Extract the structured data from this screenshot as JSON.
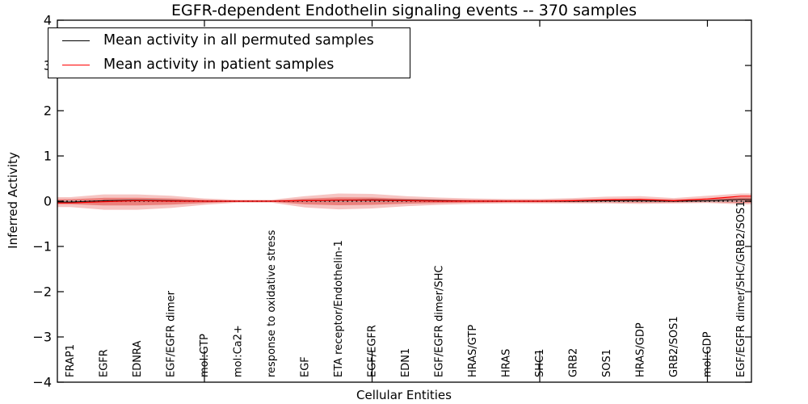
{
  "figure": {
    "title": "EGFR-dependent Endothelin signaling events -- 370 samples",
    "xlabel": "Cellular Entities",
    "ylabel": "Inferred Activity"
  },
  "legend": {
    "position": "upper left",
    "items": [
      {
        "label": "Mean activity in all permuted samples",
        "color": "#000000"
      },
      {
        "label": "Mean activity in patient samples",
        "color": "#ff0000"
      }
    ]
  },
  "chart_data": {
    "type": "line",
    "title": "EGFR-dependent Endothelin signaling events -- 370 samples",
    "xlabel": "Cellular Entities",
    "ylabel": "Inferred Activity",
    "ylim": [
      -4,
      4
    ],
    "yticks": [
      4,
      3,
      2,
      1,
      0,
      -1,
      -2,
      -3,
      -4
    ],
    "ytick_labels": [
      "4",
      "3",
      "2",
      "1",
      "0",
      "−1",
      "−2",
      "−3",
      "−4"
    ],
    "grid": false,
    "legend_position": "upper left",
    "categories": [
      "FRAP1",
      "EGFR",
      "EDNRA",
      "EGF/EGFR dimer",
      "mol:GTP",
      "mol:Ca2+",
      "response to oxidative stress",
      "EGF",
      "ETA receptor/Endothelin-1",
      "EGF/EGFR",
      "EDN1",
      "EGF/EGFR dimer/SHC",
      "HRAS/GTP",
      "HRAS",
      "SHC1",
      "GRB2",
      "SOS1",
      "HRAS/GDP",
      "GRB2/SOS1",
      "mol:GDP",
      "EGF/EGFR dimer/SHC/GRB2/SOS1"
    ],
    "xticks_major": [
      "mol:GTP",
      "EGF/EGFR",
      "SHC1",
      "mol:GDP"
    ],
    "series": [
      {
        "name": "Mean activity in all permuted samples",
        "color": "#000000",
        "values": [
          -0.02,
          0.01,
          0.02,
          0.01,
          0.0,
          0.0,
          0.0,
          0.01,
          0.02,
          0.03,
          0.02,
          0.01,
          0.0,
          0.0,
          0.0,
          0.0,
          0.01,
          0.01,
          0.0,
          0.01,
          0.04
        ]
      },
      {
        "name": "Mean activity in patient samples",
        "color": "#ff0000",
        "values": [
          -0.04,
          -0.01,
          0.01,
          0.0,
          0.0,
          0.0,
          0.0,
          0.01,
          0.02,
          0.02,
          0.01,
          0.0,
          0.0,
          0.0,
          0.0,
          0.01,
          0.03,
          0.04,
          0.01,
          0.05,
          0.11
        ]
      }
    ],
    "band": {
      "name": "patient sample activity spread",
      "color": "#de2d26",
      "outer_opacity": 0.28,
      "inner_opacity": 0.45,
      "inner_scale": 0.5,
      "upper": [
        0.09,
        0.15,
        0.15,
        0.12,
        0.06,
        0.03,
        0.03,
        0.11,
        0.17,
        0.16,
        0.11,
        0.08,
        0.06,
        0.05,
        0.05,
        0.07,
        0.1,
        0.11,
        0.07,
        0.12,
        0.17
      ],
      "lower": [
        -0.13,
        -0.19,
        -0.19,
        -0.15,
        -0.08,
        -0.03,
        -0.03,
        -0.14,
        -0.18,
        -0.16,
        -0.11,
        -0.08,
        -0.06,
        -0.05,
        -0.05,
        -0.05,
        -0.05,
        -0.06,
        -0.05,
        -0.04,
        -0.07
      ]
    },
    "zero_line": {
      "style": "dotted",
      "color": "#000000",
      "y": 0
    },
    "baseline_color": "#aaaaaa"
  }
}
